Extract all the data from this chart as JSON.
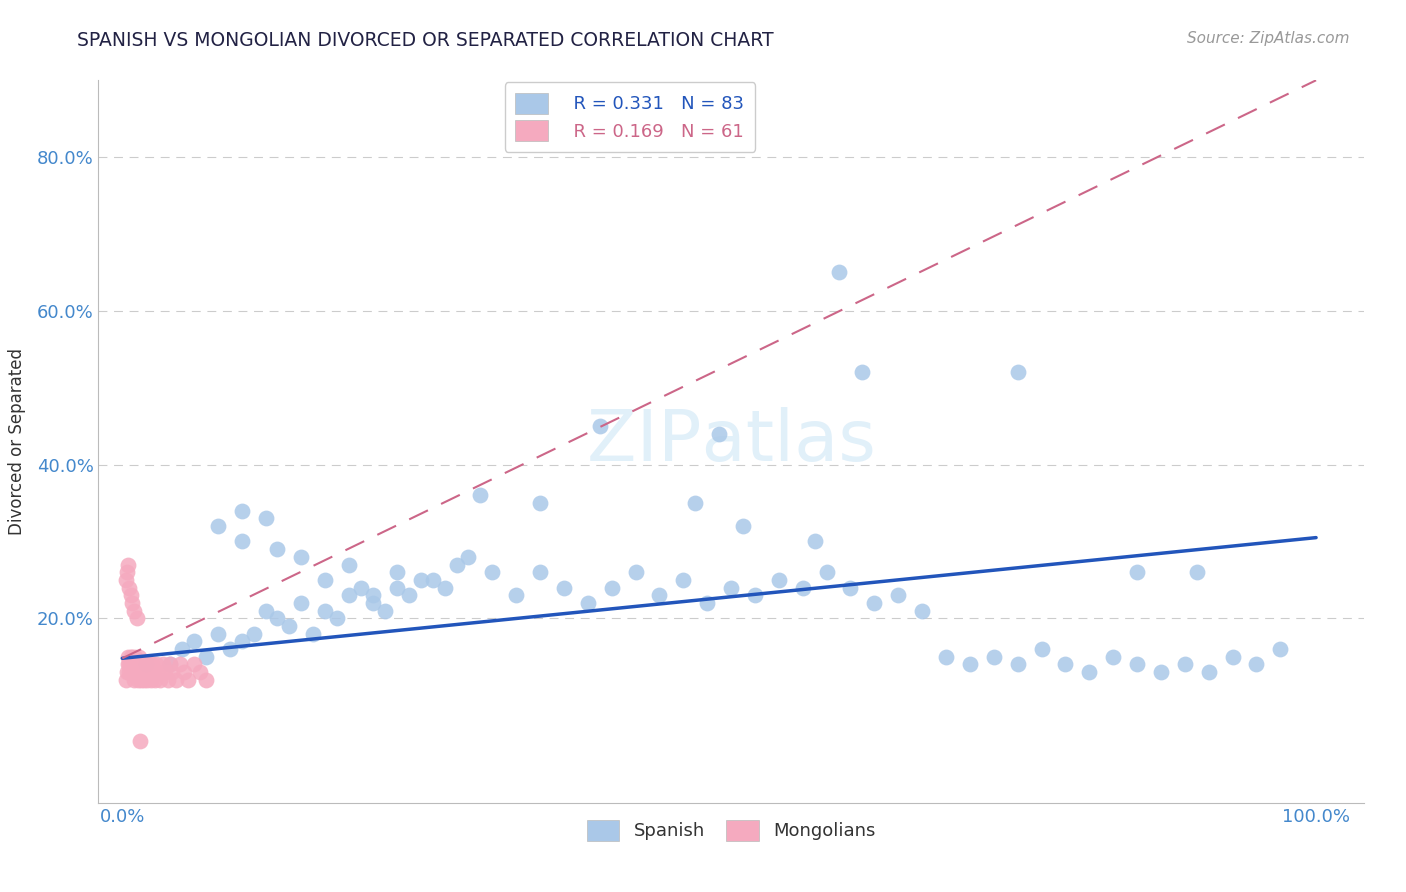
{
  "title": "SPANISH VS MONGOLIAN DIVORCED OR SEPARATED CORRELATION CHART",
  "source": "Source: ZipAtlas.com",
  "ylabel": "Divorced or Separated",
  "xlim": [
    -0.02,
    1.04
  ],
  "ylim": [
    -0.04,
    0.9
  ],
  "xticks": [
    0.0,
    0.25,
    0.5,
    0.75,
    1.0
  ],
  "xticklabels": [
    "0.0%",
    "",
    "",
    "",
    "100.0%"
  ],
  "yticks": [
    0.0,
    0.2,
    0.4,
    0.6,
    0.8
  ],
  "yticklabels": [
    "",
    "20.0%",
    "40.0%",
    "60.0%",
    "80.0%"
  ],
  "spanish_R": 0.331,
  "spanish_N": 83,
  "mongolian_R": 0.169,
  "mongolian_N": 61,
  "spanish_color": "#aac8e8",
  "mongolian_color": "#f5aabf",
  "spanish_line_color": "#2255bb",
  "mongolian_line_color": "#cc6688",
  "grid_color": "#cccccc",
  "background_color": "#ffffff",
  "sp_line_x0": 0.0,
  "sp_line_y0": 0.148,
  "sp_line_x1": 1.0,
  "sp_line_y1": 0.305,
  "mg_line_x0": 0.0,
  "mg_line_y0": 0.148,
  "mg_line_x1": 1.0,
  "mg_line_y1": 0.9,
  "spanish_x": [
    0.02,
    0.04,
    0.05,
    0.06,
    0.07,
    0.08,
    0.09,
    0.1,
    0.11,
    0.12,
    0.13,
    0.14,
    0.15,
    0.16,
    0.17,
    0.18,
    0.19,
    0.2,
    0.21,
    0.22,
    0.23,
    0.24,
    0.26,
    0.28,
    0.1,
    0.13,
    0.15,
    0.17,
    0.19,
    0.21,
    0.23,
    0.25,
    0.27,
    0.29,
    0.31,
    0.33,
    0.35,
    0.37,
    0.39,
    0.41,
    0.43,
    0.45,
    0.47,
    0.49,
    0.51,
    0.53,
    0.55,
    0.57,
    0.59,
    0.61,
    0.63,
    0.65,
    0.67,
    0.69,
    0.71,
    0.73,
    0.75,
    0.77,
    0.79,
    0.81,
    0.83,
    0.85,
    0.87,
    0.89,
    0.91,
    0.93,
    0.95,
    0.97,
    0.08,
    0.1,
    0.12,
    0.3,
    0.35,
    0.4,
    0.5,
    0.6,
    0.62,
    0.75,
    0.85,
    0.9,
    0.48,
    0.52,
    0.58
  ],
  "spanish_y": [
    0.14,
    0.14,
    0.16,
    0.17,
    0.15,
    0.18,
    0.16,
    0.17,
    0.18,
    0.21,
    0.2,
    0.19,
    0.22,
    0.18,
    0.21,
    0.2,
    0.23,
    0.24,
    0.22,
    0.21,
    0.24,
    0.23,
    0.25,
    0.27,
    0.3,
    0.29,
    0.28,
    0.25,
    0.27,
    0.23,
    0.26,
    0.25,
    0.24,
    0.28,
    0.26,
    0.23,
    0.26,
    0.24,
    0.22,
    0.24,
    0.26,
    0.23,
    0.25,
    0.22,
    0.24,
    0.23,
    0.25,
    0.24,
    0.26,
    0.24,
    0.22,
    0.23,
    0.21,
    0.15,
    0.14,
    0.15,
    0.14,
    0.16,
    0.14,
    0.13,
    0.15,
    0.14,
    0.13,
    0.14,
    0.13,
    0.15,
    0.14,
    0.16,
    0.32,
    0.34,
    0.33,
    0.36,
    0.35,
    0.45,
    0.44,
    0.65,
    0.52,
    0.52,
    0.26,
    0.26,
    0.35,
    0.32,
    0.3
  ],
  "mongolian_x": [
    0.003,
    0.004,
    0.005,
    0.005,
    0.006,
    0.006,
    0.007,
    0.007,
    0.008,
    0.008,
    0.009,
    0.009,
    0.01,
    0.01,
    0.011,
    0.011,
    0.012,
    0.012,
    0.013,
    0.013,
    0.014,
    0.014,
    0.015,
    0.015,
    0.016,
    0.016,
    0.017,
    0.018,
    0.019,
    0.02,
    0.021,
    0.022,
    0.023,
    0.024,
    0.025,
    0.026,
    0.027,
    0.028,
    0.03,
    0.032,
    0.034,
    0.036,
    0.038,
    0.04,
    0.042,
    0.045,
    0.048,
    0.052,
    0.055,
    0.06,
    0.065,
    0.07,
    0.003,
    0.004,
    0.005,
    0.006,
    0.007,
    0.008,
    0.01,
    0.012,
    0.015
  ],
  "mongolian_y": [
    0.12,
    0.13,
    0.14,
    0.15,
    0.14,
    0.13,
    0.15,
    0.14,
    0.13,
    0.15,
    0.14,
    0.13,
    0.12,
    0.14,
    0.13,
    0.15,
    0.14,
    0.13,
    0.12,
    0.14,
    0.13,
    0.15,
    0.14,
    0.13,
    0.12,
    0.14,
    0.13,
    0.12,
    0.14,
    0.13,
    0.12,
    0.14,
    0.13,
    0.12,
    0.14,
    0.13,
    0.12,
    0.14,
    0.13,
    0.12,
    0.14,
    0.13,
    0.12,
    0.14,
    0.13,
    0.12,
    0.14,
    0.13,
    0.12,
    0.14,
    0.13,
    0.12,
    0.25,
    0.26,
    0.27,
    0.24,
    0.23,
    0.22,
    0.21,
    0.2,
    0.04
  ]
}
